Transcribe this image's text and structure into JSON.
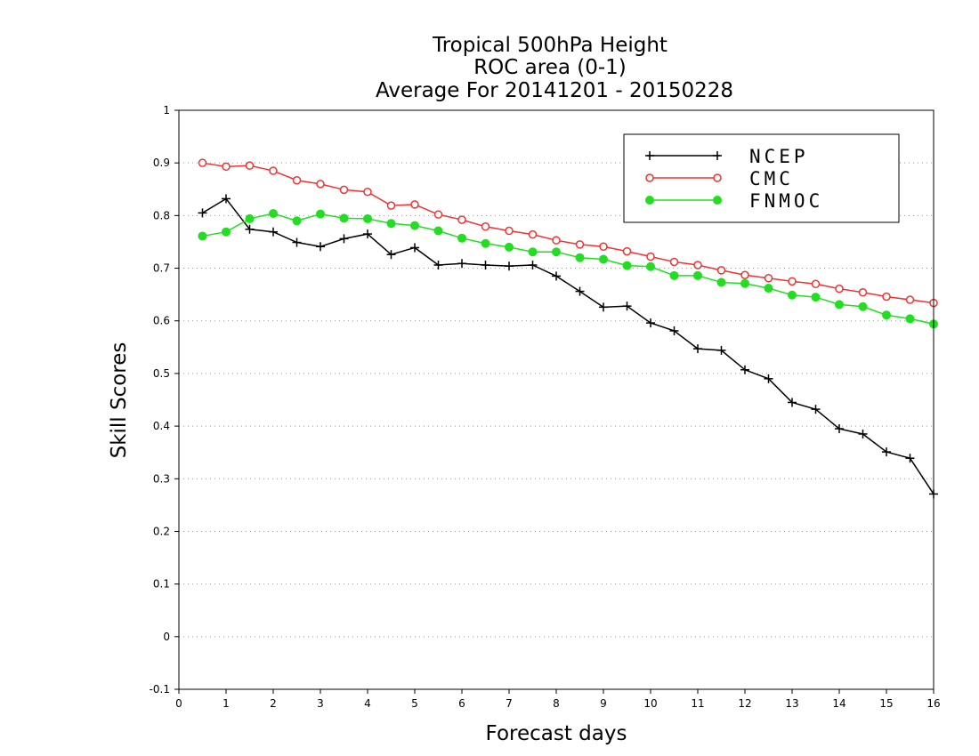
{
  "chart_data": {
    "type": "line",
    "title": [
      "Tropical 500hPa Height",
      "ROC area (0-1)",
      "Average For 20141201 - 20150228"
    ],
    "xlabel": "Forecast days",
    "ylabel": "Skill Scores",
    "xlim": [
      0,
      16
    ],
    "ylim": [
      -0.1,
      1
    ],
    "xticks": [
      0,
      1,
      2,
      3,
      4,
      5,
      6,
      7,
      8,
      9,
      10,
      11,
      12,
      13,
      14,
      15,
      16
    ],
    "yticks": [
      -0.1,
      0,
      0.1,
      0.2,
      0.3,
      0.4,
      0.5,
      0.6,
      0.7,
      0.8,
      0.9,
      1
    ],
    "ytick_labels": [
      "-0.1",
      "0",
      "0.1",
      "0.2",
      "0.3",
      "0.4",
      "0.5",
      "0.6",
      "0.7",
      "0.8",
      "0.9",
      "1"
    ],
    "grid": "horizontal dotted",
    "legend_position": "top-right",
    "x": [
      0.5,
      1,
      1.5,
      2,
      2.5,
      3,
      3.5,
      4,
      4.5,
      5,
      5.5,
      6,
      6.5,
      7,
      7.5,
      8,
      8.5,
      9,
      9.5,
      10,
      10.5,
      11,
      11.5,
      12,
      12.5,
      13,
      13.5,
      14,
      14.5,
      15,
      15.5,
      16
    ],
    "series": [
      {
        "name": "NCEP",
        "color": "#000000",
        "marker": "plus",
        "values": [
          0.805,
          0.832,
          0.774,
          0.769,
          0.749,
          0.741,
          0.756,
          0.765,
          0.726,
          0.739,
          0.706,
          0.709,
          0.706,
          0.704,
          0.706,
          0.685,
          0.656,
          0.626,
          0.628,
          0.596,
          0.581,
          0.547,
          0.544,
          0.507,
          0.49,
          0.445,
          0.432,
          0.395,
          0.385,
          0.351,
          0.339,
          0.271
        ]
      },
      {
        "name": "CMC",
        "color": "#ee3333",
        "marker": "open-circle",
        "values": [
          0.9,
          0.893,
          0.895,
          0.885,
          0.867,
          0.86,
          0.849,
          0.845,
          0.819,
          0.821,
          0.802,
          0.792,
          0.779,
          0.771,
          0.764,
          0.753,
          0.745,
          0.741,
          0.732,
          0.722,
          0.712,
          0.706,
          0.696,
          0.687,
          0.681,
          0.675,
          0.67,
          0.661,
          0.654,
          0.646,
          0.64,
          0.634
        ]
      },
      {
        "name": "FNMOC",
        "color": "#22dd22",
        "marker": "filled-circle",
        "values": [
          0.761,
          0.769,
          0.794,
          0.804,
          0.79,
          0.803,
          0.795,
          0.794,
          0.785,
          0.781,
          0.771,
          0.757,
          0.747,
          0.74,
          0.731,
          0.731,
          0.72,
          0.717,
          0.705,
          0.703,
          0.686,
          0.686,
          0.673,
          0.671,
          0.662,
          0.649,
          0.645,
          0.631,
          0.627,
          0.611,
          0.604,
          0.594
        ]
      }
    ]
  }
}
